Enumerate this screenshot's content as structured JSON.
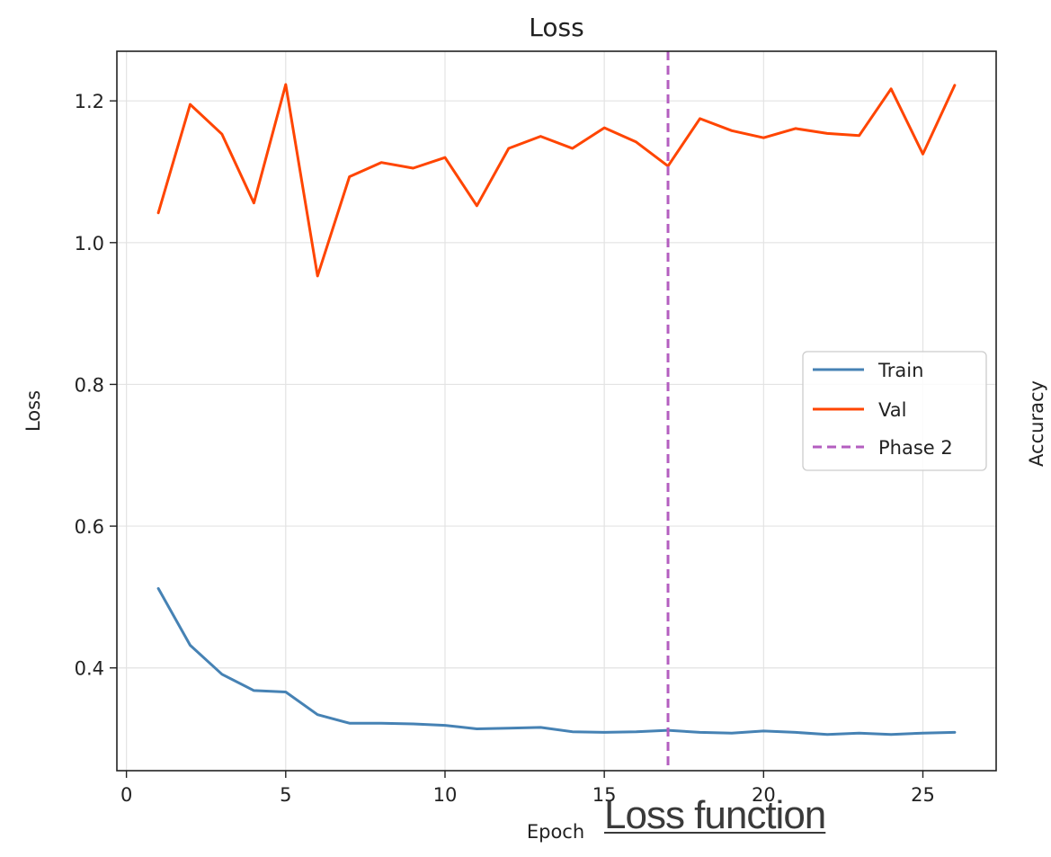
{
  "chart_data": {
    "type": "line",
    "title": "Loss",
    "xlabel": "Epoch",
    "ylabel": "Loss",
    "xlim": [
      -0.3,
      27.3
    ],
    "ylim": [
      0.255,
      1.27
    ],
    "xticks": [
      0,
      5,
      10,
      15,
      20,
      25
    ],
    "yticks": [
      0.4,
      0.6,
      0.8,
      1.0,
      1.2
    ],
    "ytick_labels": [
      "0.4",
      "0.6",
      "0.8",
      "1.0",
      "1.2"
    ],
    "grid": true,
    "legend_position": "center-right",
    "x": [
      1,
      2,
      3,
      4,
      5,
      6,
      7,
      8,
      9,
      10,
      11,
      12,
      13,
      14,
      15,
      16,
      17,
      18,
      19,
      20,
      21,
      22,
      23,
      24,
      25,
      26
    ],
    "series": [
      {
        "name": "Train",
        "color": "#4682b4",
        "values": [
          0.512,
          0.432,
          0.391,
          0.368,
          0.366,
          0.334,
          0.322,
          0.322,
          0.321,
          0.319,
          0.314,
          0.315,
          0.316,
          0.31,
          0.309,
          0.31,
          0.312,
          0.309,
          0.308,
          0.311,
          0.309,
          0.306,
          0.308,
          0.306,
          0.308,
          0.309
        ]
      },
      {
        "name": "Val",
        "color": "#ff4500",
        "values": [
          1.042,
          1.195,
          1.153,
          1.056,
          1.223,
          0.953,
          1.093,
          1.113,
          1.105,
          1.12,
          1.052,
          1.133,
          1.15,
          1.133,
          1.162,
          1.142,
          1.108,
          1.175,
          1.158,
          1.148,
          1.161,
          1.154,
          1.151,
          1.217,
          1.125,
          1.222
        ]
      }
    ],
    "vline": {
      "name": "Phase 2",
      "x": 17,
      "color": "#b45ec0",
      "style": "dashed"
    }
  },
  "side_label": "Accuracy",
  "caption": "Loss function"
}
